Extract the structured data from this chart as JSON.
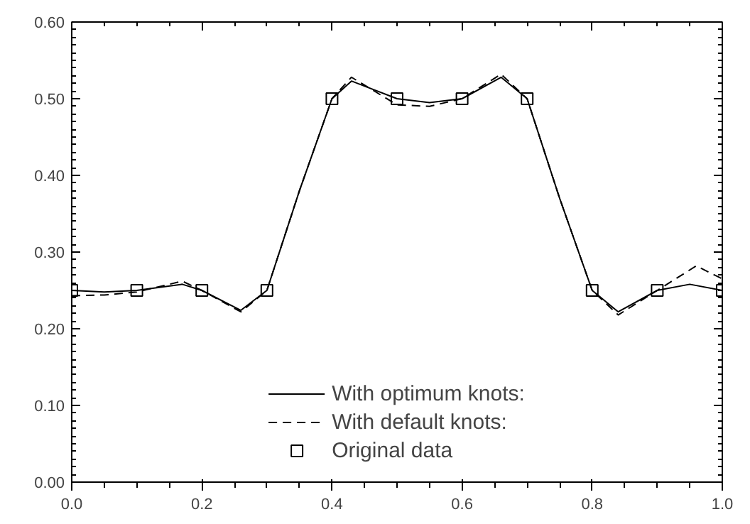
{
  "chart_data": {
    "type": "line",
    "xlim": [
      0.0,
      1.0
    ],
    "xticks": [
      {
        "value": 0,
        "label": "0.0"
      },
      0.2,
      0.4,
      0.6,
      0.8,
      {
        "value": 1,
        "label": "1.0"
      }
    ],
    "ylim": [
      0.0,
      0.6
    ],
    "yticks": [
      {
        "value": 0,
        "label": "0.00"
      },
      {
        "value": 0.1,
        "label": "0.10"
      },
      {
        "value": 0.2,
        "label": "0.20"
      },
      {
        "value": 0.3,
        "label": "0.30"
      },
      {
        "value": 0.4,
        "label": "0.40"
      },
      {
        "value": 0.5,
        "label": "0.50"
      },
      {
        "value": 0.6,
        "label": "0.60"
      }
    ],
    "grid": false,
    "legend": "bottom",
    "marker": "none",
    "series": [
      {
        "name": "With optimum knots:",
        "color": "#000000",
        "line_style": "solid",
        "x": [
          0,
          0.05,
          0.1,
          0.17,
          0.2,
          0.26,
          0.3,
          0.35,
          0.4,
          0.43,
          0.5,
          0.55,
          0.6,
          0.66,
          0.7,
          0.75,
          0.8,
          0.84,
          0.9,
          0.95,
          1.0
        ],
        "values": [
          0.25,
          0.248,
          0.25,
          0.258,
          0.25,
          0.224,
          0.25,
          0.38,
          0.5,
          0.523,
          0.5,
          0.495,
          0.5,
          0.528,
          0.5,
          0.37,
          0.25,
          0.222,
          0.25,
          0.258,
          0.25
        ]
      },
      {
        "name": "With default knots:",
        "color": "#000000",
        "line_style": "dashed",
        "x": [
          0,
          0.05,
          0.1,
          0.17,
          0.2,
          0.26,
          0.3,
          0.35,
          0.4,
          0.43,
          0.5,
          0.55,
          0.6,
          0.66,
          0.7,
          0.75,
          0.8,
          0.84,
          0.9,
          0.96,
          1.0
        ],
        "values": [
          0.243,
          0.244,
          0.248,
          0.262,
          0.25,
          0.222,
          0.25,
          0.38,
          0.5,
          0.528,
          0.492,
          0.49,
          0.5,
          0.532,
          0.5,
          0.37,
          0.25,
          0.218,
          0.25,
          0.282,
          0.265
        ]
      },
      {
        "name": "Original data",
        "color": "#000000",
        "type": "scatter",
        "marker": "square",
        "x": [
          0,
          0.1,
          0.2,
          0.3,
          0.4,
          0.5,
          0.6,
          0.7,
          0.8,
          0.9,
          1.0
        ],
        "values": [
          0.25,
          0.25,
          0.25,
          0.25,
          0.5,
          0.5,
          0.5,
          0.5,
          0.25,
          0.25,
          0.25
        ]
      }
    ]
  }
}
